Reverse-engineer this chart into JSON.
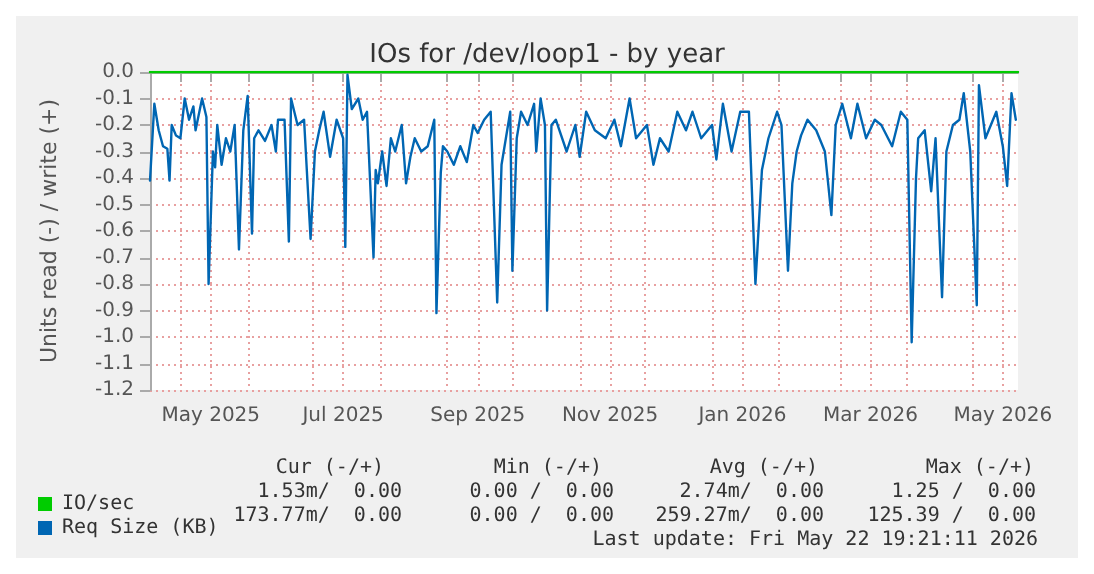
{
  "chart_data": {
    "type": "line",
    "title": "IOs for /dev/loop1 - by year",
    "ylabel": "Units read (-) / write (+)",
    "xlim": [
      "2025-04-17",
      "2026-05-22"
    ],
    "xticks": [
      {
        "value": "2025-05-01",
        "label": null
      },
      {
        "value": "2025-05-15",
        "label": "May 2025"
      },
      {
        "value": "2025-06-01",
        "label": null
      },
      {
        "value": "2025-07-01",
        "label": null
      },
      {
        "value": "2025-07-15",
        "label": "Jul 2025"
      },
      {
        "value": "2025-08-01",
        "label": null
      },
      {
        "value": "2025-09-01",
        "label": null
      },
      {
        "value": "2025-09-15",
        "label": "Sep 2025"
      },
      {
        "value": "2025-10-01",
        "label": null
      },
      {
        "value": "2025-11-01",
        "label": null
      },
      {
        "value": "2025-11-15",
        "label": "Nov 2025"
      },
      {
        "value": "2025-12-01",
        "label": null
      },
      {
        "value": "2026-01-01",
        "label": null
      },
      {
        "value": "2026-01-15",
        "label": "Jan 2026"
      },
      {
        "value": "2026-02-01",
        "label": null
      },
      {
        "value": "2026-03-01",
        "label": null
      },
      {
        "value": "2026-03-15",
        "label": "Mar 2026"
      },
      {
        "value": "2026-04-01",
        "label": null
      },
      {
        "value": "2026-05-01",
        "label": null
      },
      {
        "value": "2026-05-15",
        "label": "May 2026"
      }
    ],
    "ylim": [
      -1.2,
      0
    ],
    "yticks": [
      {
        "value": 0,
        "label": "0.0"
      },
      -0.1,
      -0.2,
      -0.3,
      -0.4,
      -0.5,
      -0.6,
      -0.7,
      -0.8,
      -0.9,
      {
        "value": -1,
        "label": "-1.0"
      },
      -1.1,
      -1.2
    ],
    "grid": true,
    "legend": "bottom left",
    "marker": "none",
    "line_style": "solid",
    "series": [
      {
        "name": "IO/sec",
        "color": "#00cc00",
        "x": [
          "2025-04-17",
          "2026-05-22"
        ],
        "values": [
          0,
          0
        ]
      },
      {
        "name": "Req Size (KB)",
        "color": "#0066b3",
        "x": [
          "2025-04-17",
          "2025-04-19",
          "2025-04-21",
          "2025-04-23",
          "2025-04-25",
          "2025-04-26",
          "2025-04-27",
          "2025-04-29",
          "2025-05-01",
          "2025-05-03",
          "2025-05-05",
          "2025-05-07",
          "2025-05-08",
          "2025-05-11",
          "2025-05-13",
          "2025-05-14",
          "2025-05-16",
          "2025-05-17",
          "2025-05-18",
          "2025-05-20",
          "2025-05-22",
          "2025-05-24",
          "2025-05-26",
          "2025-05-28",
          "2025-05-30",
          "2025-06-01",
          "2025-06-03",
          "2025-06-04",
          "2025-06-06",
          "2025-06-09",
          "2025-06-12",
          "2025-06-14",
          "2025-06-15",
          "2025-06-18",
          "2025-06-20",
          "2025-06-21",
          "2025-06-24",
          "2025-06-27",
          "2025-06-30",
          "2025-07-02",
          "2025-07-04",
          "2025-07-06",
          "2025-07-09",
          "2025-07-12",
          "2025-07-15",
          "2025-07-16",
          "2025-07-17",
          "2025-07-19",
          "2025-07-22",
          "2025-07-24",
          "2025-07-26",
          "2025-07-29",
          "2025-07-30",
          "2025-07-31",
          "2025-08-02",
          "2025-08-04",
          "2025-08-06",
          "2025-08-08",
          "2025-08-11",
          "2025-08-13",
          "2025-08-15",
          "2025-08-17",
          "2025-08-20",
          "2025-08-23",
          "2025-08-26",
          "2025-08-27",
          "2025-08-29",
          "2025-08-30",
          "2025-09-01",
          "2025-09-04",
          "2025-09-07",
          "2025-09-10",
          "2025-09-13",
          "2025-09-15",
          "2025-09-18",
          "2025-09-21",
          "2025-09-24",
          "2025-09-26",
          "2025-09-28",
          "2025-09-30",
          "2025-10-01",
          "2025-10-03",
          "2025-10-05",
          "2025-10-08",
          "2025-10-11",
          "2025-10-12",
          "2025-10-14",
          "2025-10-16",
          "2025-10-17",
          "2025-10-19",
          "2025-10-21",
          "2025-10-26",
          "2025-10-30",
          "2025-11-01",
          "2025-11-04",
          "2025-11-08",
          "2025-11-13",
          "2025-11-17",
          "2025-11-20",
          "2025-11-24",
          "2025-11-27",
          "2025-12-02",
          "2025-12-05",
          "2025-12-08",
          "2025-12-12",
          "2025-12-16",
          "2025-12-20",
          "2025-12-23",
          "2025-12-27",
          "2026-01-01",
          "2026-01-03",
          "2026-01-06",
          "2026-01-10",
          "2026-01-14",
          "2026-01-18",
          "2026-01-21",
          "2026-01-24",
          "2026-01-27",
          "2026-01-31",
          "2026-02-02",
          "2026-02-05",
          "2026-02-07",
          "2026-02-09",
          "2026-02-11",
          "2026-02-14",
          "2026-02-18",
          "2026-02-22",
          "2026-02-25",
          "2026-02-27",
          "2026-03-02",
          "2026-03-06",
          "2026-03-09",
          "2026-03-13",
          "2026-03-17",
          "2026-03-20",
          "2026-03-25",
          "2026-03-29",
          "2026-04-01",
          "2026-04-03",
          "2026-04-05",
          "2026-04-06",
          "2026-04-09",
          "2026-04-12",
          "2026-04-14",
          "2026-04-17",
          "2026-04-19",
          "2026-04-22",
          "2026-04-25",
          "2026-04-27",
          "2026-04-30",
          "2026-05-03",
          "2026-05-04",
          "2026-05-07",
          "2026-05-12",
          "2026-05-15",
          "2026-05-17",
          "2026-05-19",
          "2026-05-21"
        ],
        "values": [
          -0.41,
          -0.12,
          -0.22,
          -0.28,
          -0.29,
          -0.41,
          -0.2,
          -0.24,
          -0.25,
          -0.1,
          -0.18,
          -0.13,
          -0.22,
          -0.1,
          -0.17,
          -0.8,
          -0.3,
          -0.36,
          -0.2,
          -0.35,
          -0.25,
          -0.3,
          -0.2,
          -0.67,
          -0.22,
          -0.09,
          -0.61,
          -0.25,
          -0.22,
          -0.26,
          -0.2,
          -0.3,
          -0.18,
          -0.18,
          -0.64,
          -0.1,
          -0.2,
          -0.18,
          -0.63,
          -0.3,
          -0.22,
          -0.15,
          -0.32,
          -0.18,
          -0.25,
          -0.66,
          -0.01,
          -0.14,
          -0.1,
          -0.18,
          -0.15,
          -0.7,
          -0.37,
          -0.42,
          -0.3,
          -0.43,
          -0.25,
          -0.3,
          -0.2,
          -0.42,
          -0.32,
          -0.25,
          -0.3,
          -0.28,
          -0.18,
          -0.91,
          -0.38,
          -0.28,
          -0.3,
          -0.35,
          -0.28,
          -0.34,
          -0.2,
          -0.23,
          -0.18,
          -0.15,
          -0.87,
          -0.35,
          -0.25,
          -0.15,
          -0.75,
          -0.25,
          -0.15,
          -0.2,
          -0.12,
          -0.3,
          -0.1,
          -0.2,
          -0.9,
          -0.2,
          -0.18,
          -0.3,
          -0.2,
          -0.32,
          -0.15,
          -0.22,
          -0.25,
          -0.18,
          -0.28,
          -0.1,
          -0.25,
          -0.2,
          -0.35,
          -0.25,
          -0.3,
          -0.15,
          -0.22,
          -0.15,
          -0.25,
          -0.2,
          -0.33,
          -0.12,
          -0.3,
          -0.15,
          -0.15,
          -0.8,
          -0.37,
          -0.25,
          -0.15,
          -0.2,
          -0.75,
          -0.42,
          -0.3,
          -0.24,
          -0.18,
          -0.22,
          -0.3,
          -0.54,
          -0.2,
          -0.12,
          -0.25,
          -0.12,
          -0.25,
          -0.18,
          -0.2,
          -0.28,
          -0.15,
          -0.18,
          -1.02,
          -0.4,
          -0.25,
          -0.22,
          -0.45,
          -0.25,
          -0.85,
          -0.3,
          -0.2,
          -0.18,
          -0.08,
          -0.3,
          -0.88,
          -0.05,
          -0.25,
          -0.15,
          -0.28,
          -0.43,
          -0.08,
          -0.18
        ]
      }
    ],
    "annotations": [
      "Cur (-/+)",
      "Min (-/+)",
      "Avg (-/+)",
      "Max (-/+)",
      "1.53m/  0.00",
      "0.00 /  0.00",
      "2.74m/  0.00",
      "1.25 /  0.00",
      "173.77m/  0.00",
      "0.00 /  0.00",
      "259.27m/  0.00",
      "125.39 /  0.00",
      "Last update: Fri May 22 19:21:11 2026"
    ]
  }
}
